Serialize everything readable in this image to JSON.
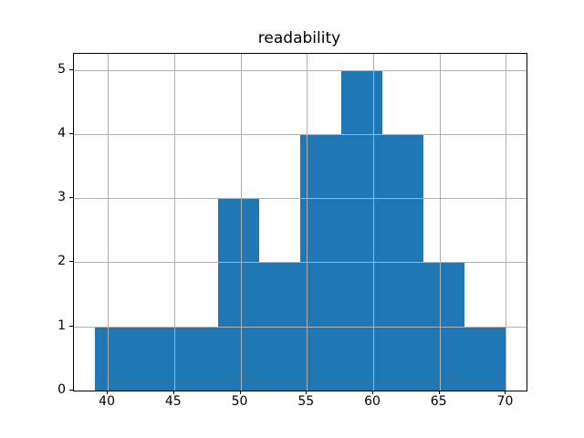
{
  "chart_data": {
    "type": "bar",
    "subtype": "histogram",
    "title": "readability",
    "xlabel": "",
    "ylabel": "",
    "bin_edges": [
      39.0,
      42.1,
      45.2,
      48.3,
      51.4,
      54.5,
      57.6,
      60.7,
      63.8,
      66.9,
      70.0
    ],
    "counts": [
      1,
      1,
      1,
      3,
      2,
      4,
      5,
      4,
      2,
      1
    ],
    "xticks": [
      40,
      45,
      50,
      55,
      60,
      65,
      70
    ],
    "yticks": [
      0,
      1,
      2,
      3,
      4,
      5
    ],
    "xlim": [
      37.45,
      71.55
    ],
    "ylim": [
      0,
      5.25
    ],
    "grid": true,
    "grid_above_bars": true,
    "legend": null,
    "colors": {
      "bar": "#1f77b4",
      "grid": "#b0b0b0",
      "axis": "#000000",
      "background": "#ffffff"
    }
  }
}
